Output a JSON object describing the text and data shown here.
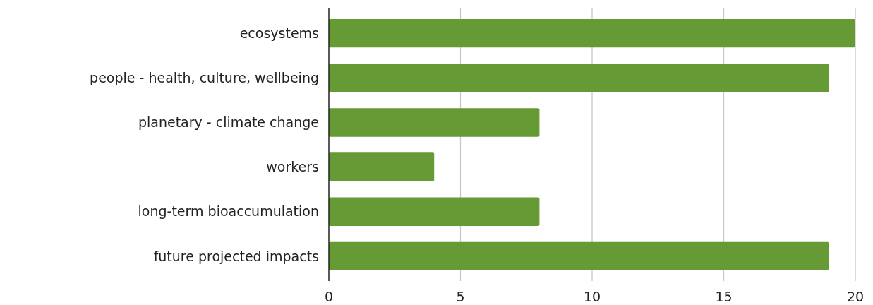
{
  "chart_data": {
    "type": "bar",
    "orientation": "horizontal",
    "categories": [
      "ecosystems",
      "people - health, culture, wellbeing",
      "planetary - climate change",
      "workers",
      "long-term bioaccumulation",
      "future projected impacts"
    ],
    "values": [
      20,
      19,
      8,
      4,
      8,
      19
    ],
    "color": "#659a34",
    "xlim": [
      0,
      20
    ],
    "xticks": [
      0,
      5,
      10,
      15,
      20
    ],
    "grid": "x"
  }
}
